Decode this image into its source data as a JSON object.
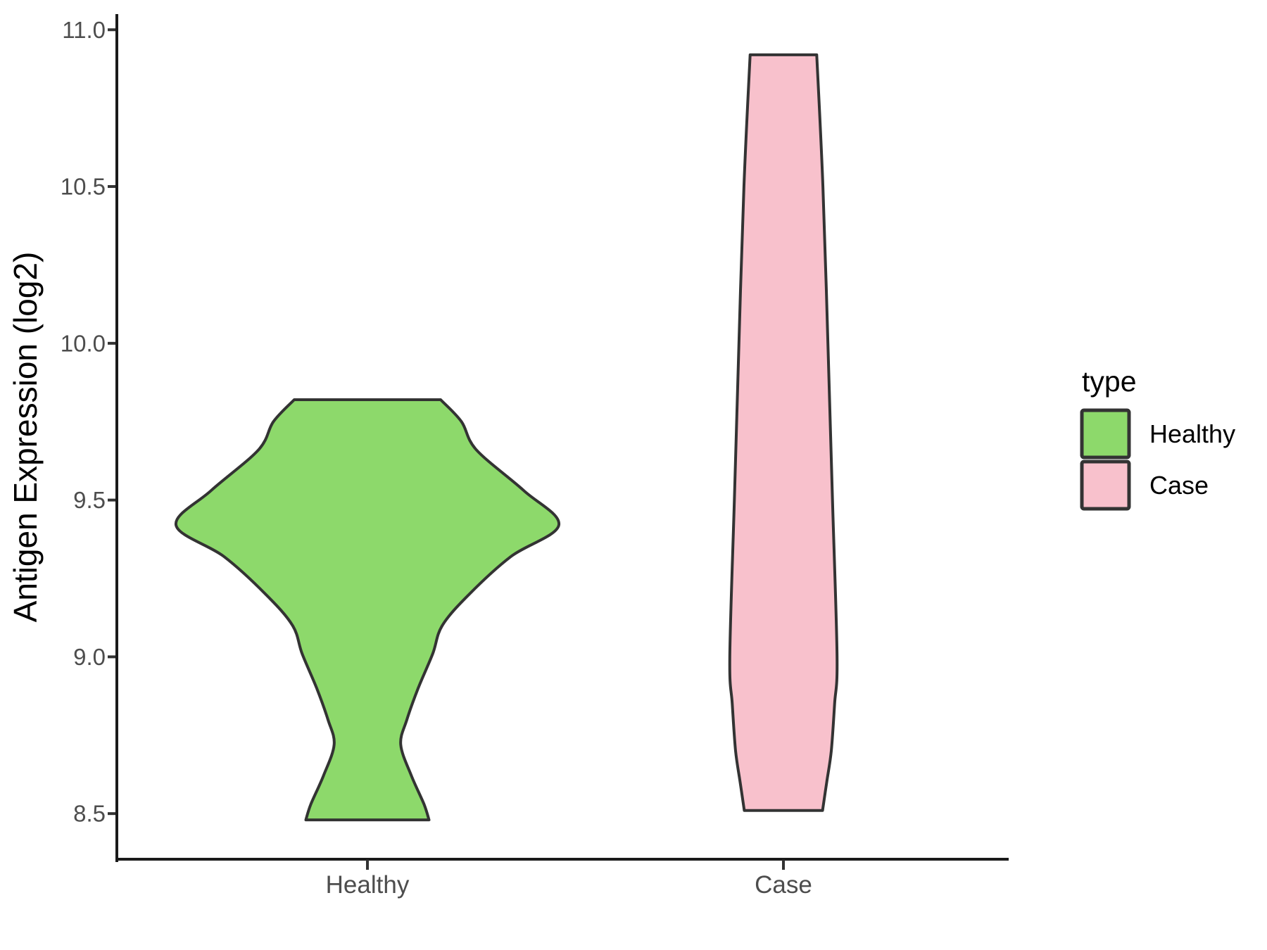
{
  "figure": {
    "background": "#FFFFFF"
  },
  "chart_data": {
    "type": "violin",
    "title": "",
    "xlabel": "",
    "ylabel": "Antigen Expression (log2)",
    "categories": [
      "Healthy",
      "Case"
    ],
    "y_ticks": [
      {
        "value": 11.0,
        "label": "11.0"
      },
      {
        "value": 10.5,
        "label": "10.5"
      },
      {
        "value": 10.0,
        "label": "10.0"
      },
      {
        "value": 9.5,
        "label": "9.5"
      },
      {
        "value": 9.0,
        "label": "9.0"
      },
      {
        "value": 8.5,
        "label": "8.5"
      }
    ],
    "y_range": [
      8.35,
      11.05
    ],
    "grid": false,
    "legend": {
      "title": "type",
      "position": "right",
      "entries": [
        {
          "label": "Healthy",
          "color": "#8DD96B"
        },
        {
          "label": "Case",
          "color": "#F8C1CC"
        }
      ]
    },
    "violins": [
      {
        "category": "Healthy",
        "color": "#8DD96B",
        "min": 8.48,
        "max": 9.82,
        "widest_at": 9.42,
        "profile": [
          [
            9.82,
            0.176
          ],
          [
            9.75,
            0.226
          ],
          [
            9.66,
            0.262
          ],
          [
            9.53,
            0.376
          ],
          [
            9.42,
            0.46
          ],
          [
            9.32,
            0.345
          ],
          [
            9.2,
            0.245
          ],
          [
            9.1,
            0.18
          ],
          [
            9.01,
            0.157
          ],
          [
            8.9,
            0.122
          ],
          [
            8.8,
            0.095
          ],
          [
            8.72,
            0.08
          ],
          [
            8.62,
            0.106
          ],
          [
            8.53,
            0.136
          ],
          [
            8.48,
            0.148
          ]
        ]
      },
      {
        "category": "Case",
        "color": "#F8C1CC",
        "min": 8.51,
        "max": 10.92,
        "widest_at": 9.0,
        "profile": [
          [
            10.92,
            0.08
          ],
          [
            10.5,
            0.095
          ],
          [
            10.0,
            0.107
          ],
          [
            9.5,
            0.118
          ],
          [
            9.0,
            0.129
          ],
          [
            8.85,
            0.123
          ],
          [
            8.7,
            0.115
          ],
          [
            8.6,
            0.104
          ],
          [
            8.51,
            0.094
          ]
        ]
      }
    ],
    "style": {
      "outline_color": "#333333",
      "outline_width": 4,
      "axis_color": "#1A1A1A",
      "tick_color": "#333333",
      "tick_label_color": "#4D4D4D",
      "axis_title_color": "#000000",
      "legend_text_color": "#000000"
    }
  }
}
